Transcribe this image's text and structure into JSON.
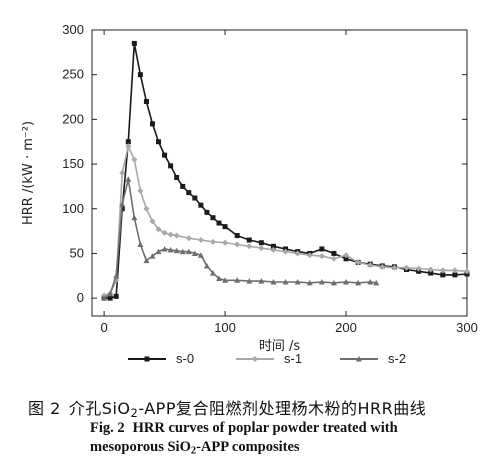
{
  "chart_data": {
    "type": "line",
    "ylabel": "HRR /(kW · m⁻²)",
    "xlabel": "时间 /s",
    "xlim": [
      -10,
      300
    ],
    "ylim": [
      -20,
      300
    ],
    "xticks": [
      "0",
      "100",
      "200",
      "300"
    ],
    "yticks": [
      "0",
      "50",
      "100",
      "150",
      "200",
      "250",
      "300"
    ],
    "legend_position": "bottom",
    "series": [
      {
        "name": "s-0",
        "color": "#1a1a1a",
        "marker": "square",
        "x": [
          0,
          5,
          10,
          15,
          20,
          25,
          30,
          35,
          40,
          45,
          50,
          55,
          60,
          65,
          70,
          75,
          80,
          85,
          90,
          95,
          100,
          110,
          120,
          130,
          140,
          150,
          160,
          170,
          180,
          190,
          200,
          210,
          220,
          230,
          240,
          250,
          260,
          270,
          280,
          290,
          300
        ],
        "y": [
          0,
          0,
          2,
          100,
          175,
          285,
          250,
          220,
          195,
          175,
          160,
          148,
          135,
          125,
          118,
          112,
          104,
          96,
          90,
          84,
          80,
          70,
          65,
          62,
          58,
          55,
          52,
          50,
          55,
          50,
          44,
          40,
          38,
          36,
          35,
          32,
          30,
          28,
          26,
          26,
          27
        ]
      },
      {
        "name": "s-1",
        "color": "#a8a8a8",
        "marker": "diamond",
        "x": [
          0,
          5,
          10,
          15,
          20,
          25,
          30,
          35,
          40,
          45,
          50,
          55,
          60,
          70,
          80,
          90,
          100,
          110,
          120,
          130,
          140,
          150,
          160,
          170,
          180,
          190,
          200,
          210,
          220,
          230,
          240,
          250,
          260,
          270,
          280,
          290,
          300
        ],
        "y": [
          3,
          5,
          20,
          140,
          170,
          155,
          120,
          100,
          86,
          77,
          73,
          71,
          70,
          67,
          65,
          63,
          62,
          60,
          58,
          56,
          54,
          52,
          50,
          48,
          47,
          44,
          48,
          40,
          37,
          35,
          34,
          34,
          33,
          32,
          31,
          31,
          30
        ]
      },
      {
        "name": "s-2",
        "color": "#6e6e6e",
        "marker": "triangle",
        "x": [
          0,
          5,
          10,
          15,
          20,
          25,
          30,
          35,
          40,
          45,
          50,
          55,
          60,
          65,
          70,
          75,
          80,
          85,
          90,
          95,
          100,
          110,
          120,
          130,
          140,
          150,
          160,
          170,
          180,
          190,
          200,
          210,
          220,
          225
        ],
        "y": [
          0,
          5,
          25,
          105,
          133,
          90,
          60,
          42,
          47,
          52,
          55,
          54,
          53,
          52,
          52,
          50,
          48,
          36,
          28,
          22,
          20,
          20,
          19,
          19,
          18,
          18,
          18,
          17,
          18,
          17,
          18,
          17,
          18,
          17
        ]
      }
    ]
  },
  "caption": {
    "cn_prefix": "图 2",
    "cn_pre": "介孔SiO",
    "cn_sub": "2",
    "cn_post": "-APP复合阻燃剂处理杨木粉的HRR曲线",
    "en_prefix": "Fig. 2",
    "en_line1": "HRR curves of poplar powder treated with",
    "en_line2_pre": "mesoporous SiO",
    "en_line2_sub": "2",
    "en_line2_post": "-APP composites"
  }
}
